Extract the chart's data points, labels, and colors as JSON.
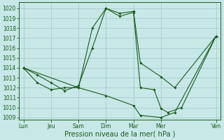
{
  "background_color": "#c8e8e8",
  "grid_color": "#aacccc",
  "line_color": "#1a5c1a",
  "marker_color": "#1a5c1a",
  "xlabel": "Pression niveau de la mer( hPa )",
  "xlabel_fontsize": 7,
  "ylim": [
    1008.8,
    1020.6
  ],
  "yticks": [
    1009,
    1010,
    1011,
    1012,
    1013,
    1014,
    1015,
    1016,
    1017,
    1018,
    1019,
    1020
  ],
  "xtick_labels": [
    "Lun",
    "Jeu",
    "Sam",
    "Dim",
    "Mar",
    "Mer",
    "Ven"
  ],
  "xtick_positions": [
    0,
    12,
    24,
    36,
    48,
    60,
    84
  ],
  "xlim": [
    -2,
    86
  ],
  "line1_x": [
    0,
    6,
    12,
    18,
    24,
    30,
    36,
    42,
    48,
    51,
    60,
    66,
    84
  ],
  "line1_y": [
    1014.0,
    1013.3,
    1012.5,
    1011.7,
    1012.2,
    1016.0,
    1020.0,
    1019.5,
    1019.7,
    1014.5,
    1013.1,
    1012.0,
    1017.2
  ],
  "line2_x": [
    0,
    6,
    12,
    18,
    24,
    30,
    36,
    42,
    48,
    51,
    57,
    60,
    63,
    69,
    84
  ],
  "line2_y": [
    1014.0,
    1012.5,
    1011.8,
    1012.0,
    1012.0,
    1018.0,
    1020.0,
    1019.2,
    1019.6,
    1012.0,
    1011.8,
    1009.9,
    1009.5,
    1010.0,
    1017.2
  ],
  "line3_x": [
    0,
    24,
    36,
    48,
    51,
    60,
    66,
    84
  ],
  "line3_y": [
    1014.0,
    1012.0,
    1011.2,
    1010.2,
    1009.2,
    1009.0,
    1009.5,
    1017.2
  ]
}
